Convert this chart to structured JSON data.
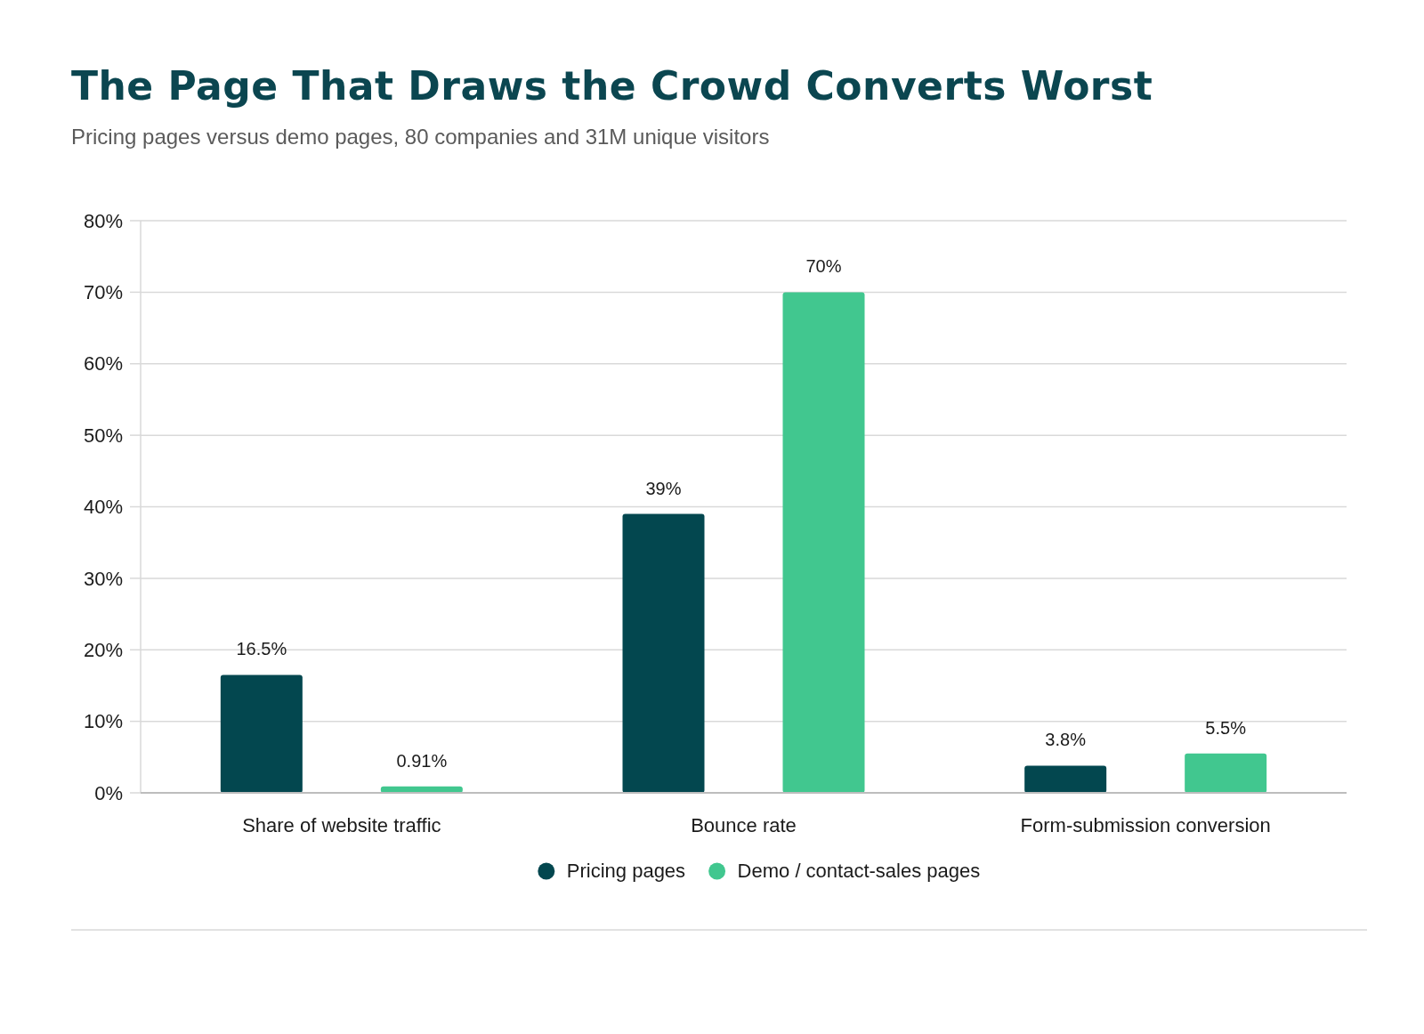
{
  "chart_data": {
    "type": "bar",
    "title": "The Page That Draws the Crowd Converts Worst",
    "subtitle": "Pricing pages versus demo pages, 80 companies and 31M unique visitors",
    "categories": [
      "Share of website traffic",
      "Bounce rate",
      "Form-submission conversion"
    ],
    "series": [
      {
        "name": "Pricing pages",
        "color": "#03474f",
        "values": [
          16.5,
          39,
          3.8
        ],
        "value_labels": [
          "16.5%",
          "39%",
          "3.8%"
        ]
      },
      {
        "name": "Demo / contact-sales pages",
        "color": "#41c78f",
        "values": [
          0.91,
          70,
          5.5
        ],
        "value_labels": [
          "0.91%",
          "70%",
          "5.5%"
        ]
      }
    ],
    "ylim": [
      0,
      80
    ],
    "yticks": [
      {
        "value": 0,
        "label": "0%"
      },
      {
        "value": 10,
        "label": "10%"
      },
      {
        "value": 20,
        "label": "20%"
      },
      {
        "value": 30,
        "label": "30%"
      },
      {
        "value": 40,
        "label": "40%"
      },
      {
        "value": 50,
        "label": "50%"
      },
      {
        "value": 60,
        "label": "60%"
      },
      {
        "value": 70,
        "label": "70%"
      },
      {
        "value": 80,
        "label": "80%"
      }
    ],
    "grid": "y",
    "legend": "bottom"
  }
}
